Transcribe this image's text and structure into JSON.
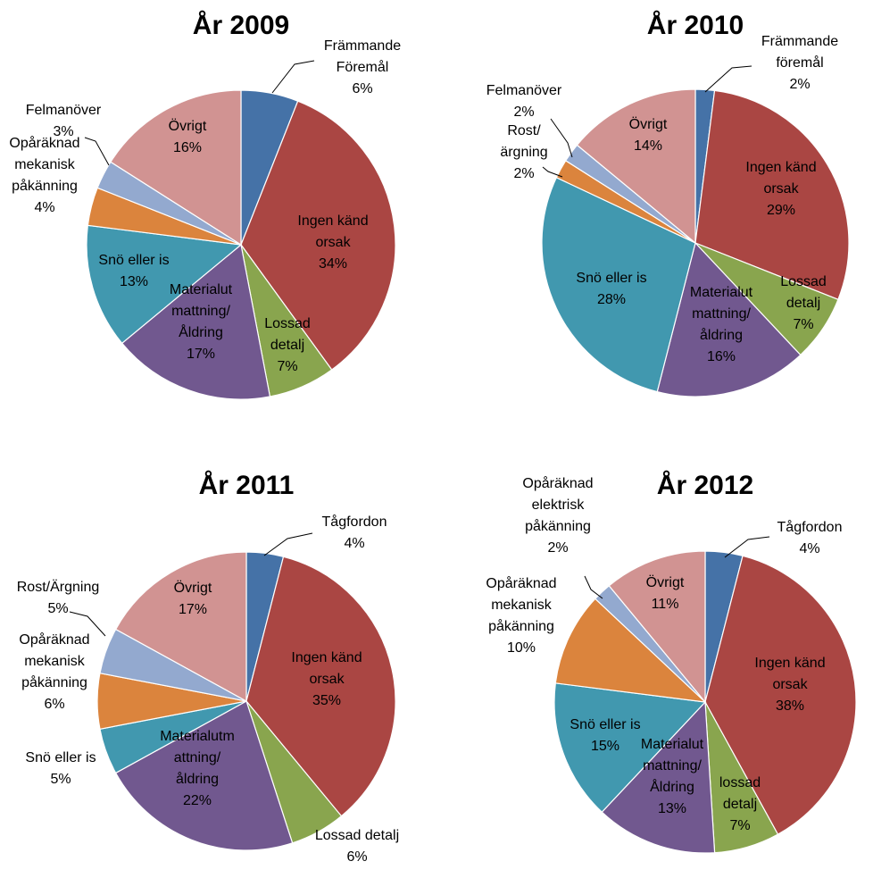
{
  "colors": {
    "blue": "#4572A7",
    "red": "#AA4643",
    "green": "#89A54E",
    "purple": "#71588F",
    "teal": "#4198AF",
    "orange": "#DB843D",
    "lightblue": "#93A9CF",
    "pink": "#D19392"
  },
  "chart_data": [
    {
      "type": "pie",
      "title": "År 2009",
      "slices": [
        {
          "label": [
            "Främmande",
            "Föremål",
            "6%"
          ],
          "value": 6,
          "color": "#4572A7"
        },
        {
          "label": [
            "Ingen känd",
            "orsak",
            "34%"
          ],
          "value": 34,
          "color": "#AA4643"
        },
        {
          "label": [
            "Lossad",
            "detalj",
            "7%"
          ],
          "value": 7,
          "color": "#89A54E"
        },
        {
          "label": [
            "Materialut",
            "mattning/",
            "Åldring",
            "17%"
          ],
          "value": 17,
          "color": "#71588F"
        },
        {
          "label": [
            "Snö eller is",
            "13%"
          ],
          "value": 13,
          "color": "#4198AF"
        },
        {
          "label": [
            "Opåräknad",
            "mekanisk",
            "påkänning",
            "4%"
          ],
          "value": 4,
          "color": "#DB843D"
        },
        {
          "label": [
            "Felmanöver",
            "3%"
          ],
          "value": 3,
          "color": "#93A9CF"
        },
        {
          "label": [
            "Övrigt",
            "16%"
          ],
          "value": 16,
          "color": "#D19392"
        }
      ]
    },
    {
      "type": "pie",
      "title": "År 2010",
      "slices": [
        {
          "label": [
            "Främmande",
            "föremål",
            "2%"
          ],
          "value": 2,
          "color": "#4572A7"
        },
        {
          "label": [
            "Ingen känd",
            "orsak",
            "29%"
          ],
          "value": 29,
          "color": "#AA4643"
        },
        {
          "label": [
            "Lossad",
            "detalj",
            "7%"
          ],
          "value": 7,
          "color": "#89A54E"
        },
        {
          "label": [
            "Materialut",
            "mattning/",
            "åldring",
            "16%"
          ],
          "value": 16,
          "color": "#71588F"
        },
        {
          "label": [
            "Snö eller is",
            "28%"
          ],
          "value": 28,
          "color": "#4198AF"
        },
        {
          "label": [
            "Rost/",
            "ärgning",
            "2%"
          ],
          "value": 2,
          "color": "#DB843D"
        },
        {
          "label": [
            "Felmanöver",
            "2%"
          ],
          "value": 2,
          "color": "#93A9CF"
        },
        {
          "label": [
            "Övrigt",
            "14%"
          ],
          "value": 14,
          "color": "#D19392"
        }
      ]
    },
    {
      "type": "pie",
      "title": "År 2011",
      "slices": [
        {
          "label": [
            "Tågfordon",
            "4%"
          ],
          "value": 4,
          "color": "#4572A7"
        },
        {
          "label": [
            "Ingen känd",
            "orsak",
            "35%"
          ],
          "value": 35,
          "color": "#AA4643"
        },
        {
          "label": [
            "Lossad detalj",
            "6%"
          ],
          "value": 6,
          "color": "#89A54E"
        },
        {
          "label": [
            "Materialutm",
            "attning/",
            "åldring",
            "22%"
          ],
          "value": 22,
          "color": "#71588F"
        },
        {
          "label": [
            "Snö eller is",
            "5%"
          ],
          "value": 5,
          "color": "#4198AF"
        },
        {
          "label": [
            "Opåräknad",
            "mekanisk",
            "påkänning",
            "6%"
          ],
          "value": 6,
          "color": "#DB843D"
        },
        {
          "label": [
            "Rost/Ärgning",
            "5%"
          ],
          "value": 5,
          "color": "#93A9CF"
        },
        {
          "label": [
            "Övrigt",
            "17%"
          ],
          "value": 17,
          "color": "#D19392"
        }
      ]
    },
    {
      "type": "pie",
      "title": "År 2012",
      "slices": [
        {
          "label": [
            "Tågfordon",
            "4%"
          ],
          "value": 4,
          "color": "#4572A7"
        },
        {
          "label": [
            "Ingen känd",
            "orsak",
            "38%"
          ],
          "value": 38,
          "color": "#AA4643"
        },
        {
          "label": [
            "lossad",
            "detalj",
            "7%"
          ],
          "value": 7,
          "color": "#89A54E"
        },
        {
          "label": [
            "Materialut",
            "mattning/",
            "Åldring",
            "13%"
          ],
          "value": 13,
          "color": "#71588F"
        },
        {
          "label": [
            "Snö eller is",
            "15%"
          ],
          "value": 15,
          "color": "#4198AF"
        },
        {
          "label": [
            "Opåräknad",
            "mekanisk",
            "påkänning",
            "10%"
          ],
          "value": 10,
          "color": "#DB843D"
        },
        {
          "label": [
            "Opåräknad",
            "elektrisk",
            "påkänning",
            "2%"
          ],
          "value": 2,
          "color": "#93A9CF"
        },
        {
          "label": [
            "Övrigt",
            "11%"
          ],
          "value": 11,
          "color": "#D19392"
        }
      ]
    }
  ]
}
